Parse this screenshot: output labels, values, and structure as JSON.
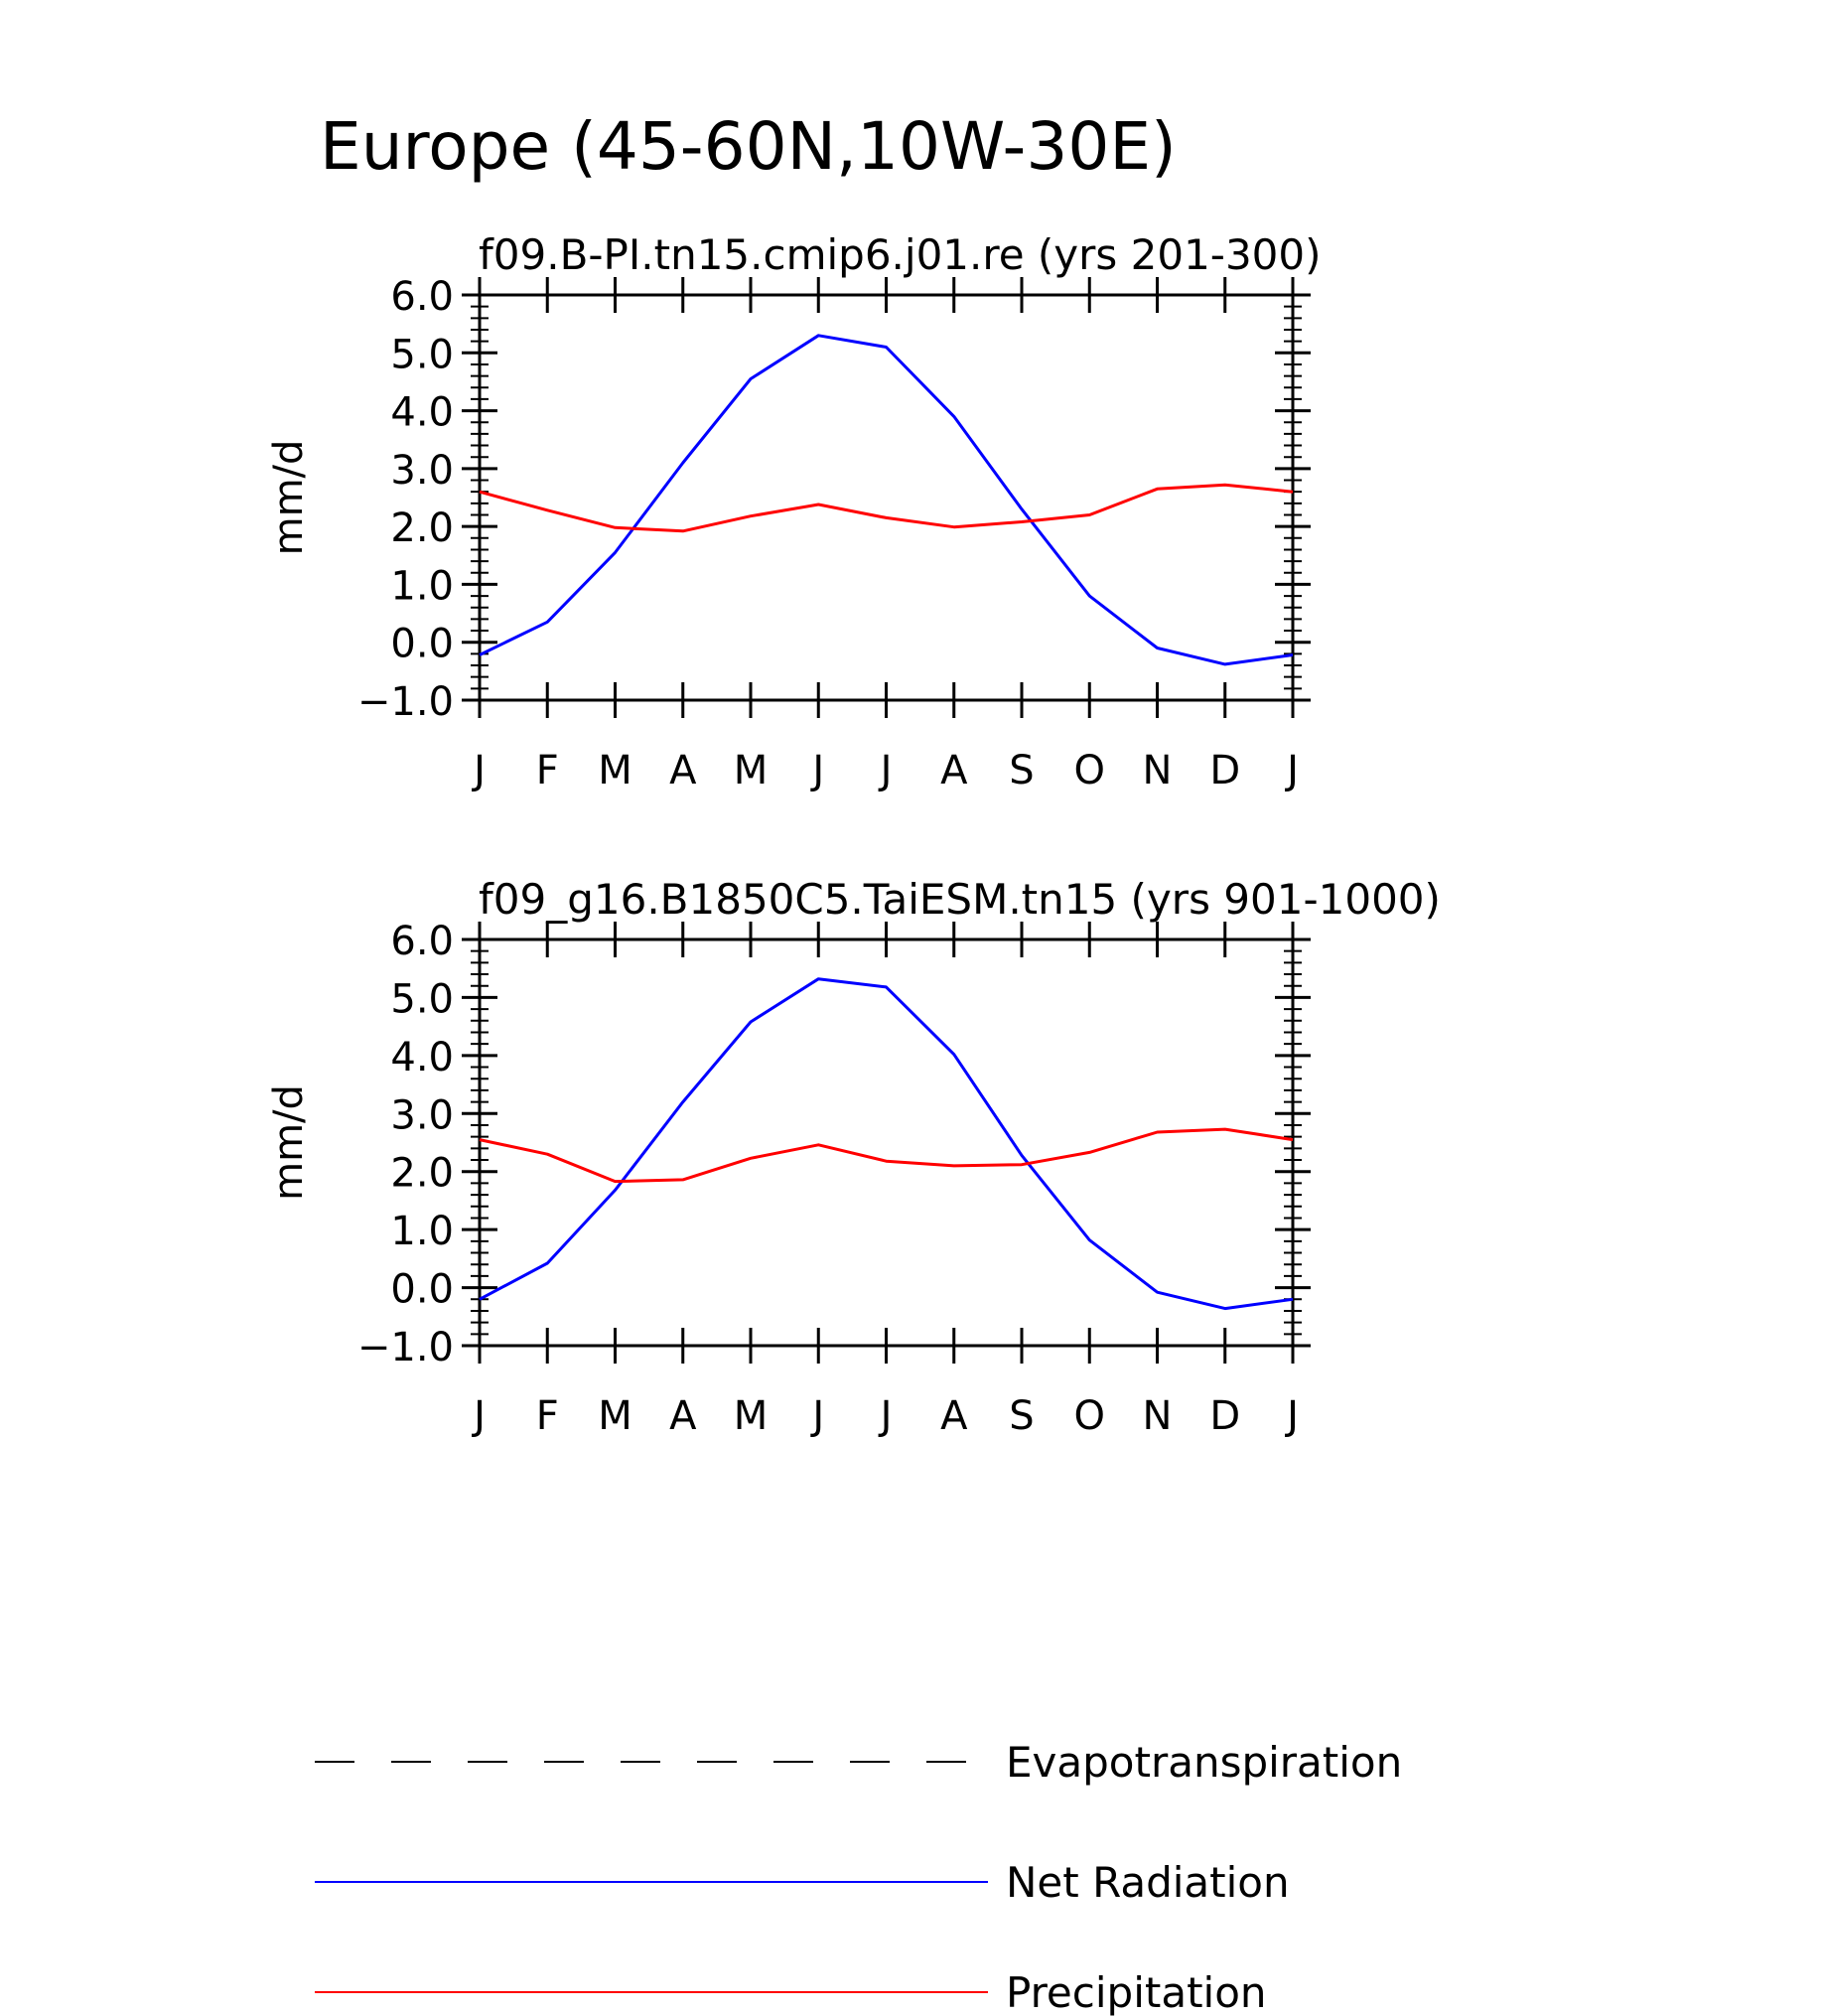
{
  "figure": {
    "title": "Europe (45-60N,10W-30E)"
  },
  "chart_data": [
    {
      "type": "line",
      "title": "f09.B-PI.tn15.cmip6.j01.re (yrs 201-300)",
      "ylabel": "mm/d",
      "xlabel": "",
      "categories": [
        "J",
        "F",
        "M",
        "A",
        "M",
        "J",
        "J",
        "A",
        "S",
        "O",
        "N",
        "D",
        "J"
      ],
      "ylim": [
        -1.0,
        6.0
      ],
      "yticks": [
        "-1.0",
        "0.0",
        "1.0",
        "2.0",
        "3.0",
        "4.0",
        "5.0",
        "6.0"
      ],
      "series": [
        {
          "name": "Net Radiation",
          "color": "#0000ff",
          "values": [
            -0.22,
            0.35,
            1.55,
            3.1,
            4.55,
            5.3,
            5.1,
            3.9,
            2.3,
            0.8,
            -0.1,
            -0.38,
            -0.22
          ]
        },
        {
          "name": "Precipitation",
          "color": "#ff0000",
          "values": [
            2.6,
            2.28,
            1.98,
            1.92,
            2.18,
            2.38,
            2.15,
            1.99,
            2.08,
            2.2,
            2.65,
            2.72,
            2.6
          ]
        }
      ]
    },
    {
      "type": "line",
      "title": "f09_g16.B1850C5.TaiESM.tn15 (yrs 901-1000)",
      "ylabel": "mm/d",
      "xlabel": "",
      "categories": [
        "J",
        "F",
        "M",
        "A",
        "M",
        "J",
        "J",
        "A",
        "S",
        "O",
        "N",
        "D",
        "J"
      ],
      "ylim": [
        -1.0,
        6.0
      ],
      "yticks": [
        "-1.0",
        "0.0",
        "1.0",
        "2.0",
        "3.0",
        "4.0",
        "5.0",
        "6.0"
      ],
      "series": [
        {
          "name": "Net Radiation",
          "color": "#0000ff",
          "values": [
            -0.2,
            0.42,
            1.68,
            3.2,
            4.58,
            5.32,
            5.18,
            4.02,
            2.28,
            0.82,
            -0.08,
            -0.36,
            -0.2
          ]
        },
        {
          "name": "Precipitation",
          "color": "#ff0000",
          "values": [
            2.55,
            2.3,
            1.83,
            1.86,
            2.23,
            2.46,
            2.18,
            2.1,
            2.12,
            2.33,
            2.68,
            2.73,
            2.55
          ]
        }
      ]
    }
  ],
  "legend": [
    {
      "label": "Evapotranspiration",
      "color": "#000000",
      "style": "dashed"
    },
    {
      "label": "Net Radiation",
      "color": "#0000ff",
      "style": "solid"
    },
    {
      "label": "Precipitation",
      "color": "#ff0000",
      "style": "solid"
    }
  ]
}
